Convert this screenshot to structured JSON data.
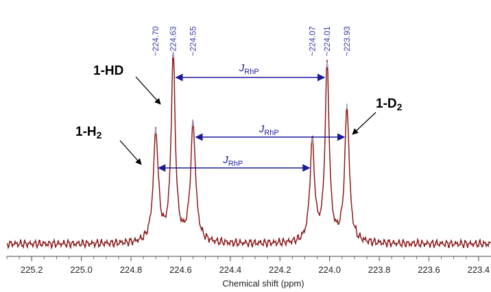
{
  "chart_data": {
    "type": "line",
    "xlabel": "Chemical shift (ppm)",
    "ylabel": "",
    "xlim": [
      225.3,
      223.35
    ],
    "x_reversed": true,
    "x_ticks": [
      "225.2",
      "225.0",
      "224.8",
      "224.6",
      "224.4",
      "224.2",
      "224.0",
      "223.8",
      "223.6",
      "223.4"
    ],
    "baseline": 0.02,
    "peaks": [
      {
        "x": 224.7,
        "height": 0.58,
        "width": 0.012
      },
      {
        "x": 224.63,
        "height": 0.98,
        "width": 0.01
      },
      {
        "x": 224.55,
        "height": 0.62,
        "width": 0.012
      },
      {
        "x": 224.07,
        "height": 0.53,
        "width": 0.011
      },
      {
        "x": 224.01,
        "height": 0.93,
        "width": 0.01
      },
      {
        "x": 223.93,
        "height": 0.71,
        "width": 0.011
      }
    ],
    "peak_labels": [
      "224.70",
      "224.63",
      "224.55",
      "224.07",
      "224.01",
      "223.93"
    ],
    "series": [
      {
        "color": "#8b1a1a"
      }
    ]
  },
  "annotations": {
    "compounds": [
      {
        "main": "1-HD",
        "sub": ""
      },
      {
        "main": "1-H",
        "sub": "2"
      },
      {
        "main": "1-D",
        "sub": "2"
      }
    ],
    "coupling": [
      {
        "main": "J",
        "sub": "RhP",
        "from": 224.63,
        "to": 224.01
      },
      {
        "main": "J",
        "sub": "RhP",
        "from": 224.55,
        "to": 223.93
      },
      {
        "main": "J",
        "sub": "RhP",
        "from": 224.7,
        "to": 224.07
      }
    ]
  },
  "colors": {
    "spectrum": "#8b1a1a",
    "arrows": "#1a1a9c",
    "peak_marks": "#3a3aa8"
  }
}
